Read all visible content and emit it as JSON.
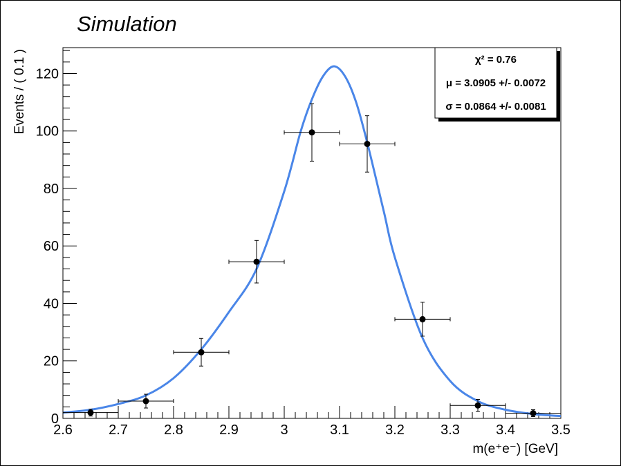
{
  "title": "Simulation",
  "chart_data": {
    "type": "scatter",
    "xlabel": "m(e⁺e⁻) [GeV]",
    "ylabel": "Events / ( 0.1 )",
    "xlim": [
      2.6,
      3.5
    ],
    "ylim": [
      0,
      129
    ],
    "x_ticks": [
      2.6,
      2.7,
      2.8,
      2.9,
      3,
      3.1,
      3.2,
      3.3,
      3.4,
      3.5
    ],
    "y_ticks": [
      0,
      20,
      40,
      60,
      80,
      100,
      120
    ],
    "x_tick_labels": [
      "2.6",
      "2.7",
      "2.8",
      "2.9",
      "3",
      "3.1",
      "3.2",
      "3.3",
      "3.4",
      "3.5"
    ],
    "y_tick_labels": [
      "0",
      "20",
      "40",
      "60",
      "80",
      "100",
      "120"
    ],
    "series": [
      {
        "type": "errorbar",
        "x": [
          2.65,
          2.75,
          2.85,
          2.95,
          3.05,
          3.15,
          3.25,
          3.35,
          3.45
        ],
        "y": [
          2,
          6,
          23,
          54.5,
          99.5,
          95.5,
          34.5,
          4.5,
          1.8
        ],
        "xerr": 0.05,
        "yerr_low": [
          1.2,
          2.4,
          4.8,
          7.4,
          10.0,
          9.8,
          5.9,
          2.1,
          1.2
        ],
        "yerr_high": [
          1.2,
          2.4,
          4.8,
          7.4,
          10.0,
          9.8,
          5.9,
          2.1,
          1.2
        ],
        "color": "#000000"
      },
      {
        "type": "line",
        "x": [
          2.6,
          2.65,
          2.7,
          2.75,
          2.8,
          2.85,
          2.9,
          2.95,
          3.0,
          3.03,
          3.05,
          3.07,
          3.09,
          3.11,
          3.13,
          3.15,
          3.18,
          3.2,
          3.25,
          3.3,
          3.35,
          3.4,
          3.45,
          3.5
        ],
        "y": [
          2.0,
          3.0,
          5.0,
          8.0,
          14.0,
          24.0,
          37.0,
          52.0,
          79.0,
          100.0,
          111.0,
          119.0,
          122.5,
          119.0,
          110.0,
          96.0,
          72.0,
          56.0,
          28.0,
          13.0,
          6.0,
          3.0,
          1.5,
          0.8
        ],
        "color": "#4a86e8"
      }
    ],
    "legend": "top-right",
    "annotations": [
      "χ² = 0.76",
      "μ = 3.0905 +/- 0.0072",
      "σ = 0.0864 +/- 0.0081"
    ]
  }
}
